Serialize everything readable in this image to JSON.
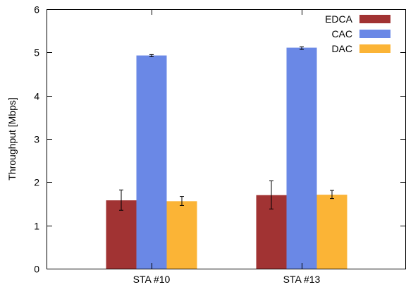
{
  "chart_data": {
    "type": "bar",
    "ylabel": "Throughput [Mbps]",
    "ylim": [
      0,
      6
    ],
    "yticks": [
      0,
      1,
      2,
      3,
      4,
      5,
      6
    ],
    "categories": [
      "STA #10",
      "STA #13"
    ],
    "grid": false,
    "legend": "top-right",
    "series": [
      {
        "name": "EDCA",
        "color": "#a13333",
        "values": [
          1.58,
          1.7
        ],
        "error_low": [
          1.35,
          1.38
        ],
        "error_high": [
          1.82,
          2.03
        ]
      },
      {
        "name": "CAC",
        "color": "#6a88e6",
        "values": [
          4.93,
          5.11
        ],
        "error_low": [
          4.9,
          5.07
        ],
        "error_high": [
          4.95,
          5.13
        ]
      },
      {
        "name": "DAC",
        "color": "#fbb436",
        "values": [
          1.56,
          1.71
        ],
        "error_low": [
          1.46,
          1.62
        ],
        "error_high": [
          1.67,
          1.81
        ]
      }
    ]
  }
}
